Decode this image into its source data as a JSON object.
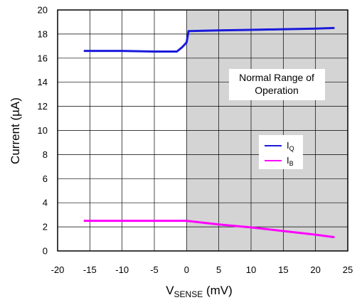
{
  "chart_data": {
    "type": "line",
    "title": "",
    "xlabel_main": "V",
    "xlabel_sub": "SENSE",
    "xlabel_unit": " (mV)",
    "ylabel": "Current (µA)",
    "xlim": [
      -20,
      25
    ],
    "ylim": [
      0,
      20
    ],
    "x_ticks": [
      -20,
      -15,
      -10,
      -5,
      0,
      5,
      10,
      15,
      20,
      25
    ],
    "y_ticks": [
      0,
      2,
      4,
      6,
      8,
      10,
      12,
      14,
      16,
      18,
      20
    ],
    "grid": true,
    "shaded_region": {
      "x_from": 0,
      "x_to": 25,
      "color": "#d4d4d4"
    },
    "annotation": {
      "line1": "Normal Range of",
      "line2": "Operation",
      "x": 12.5,
      "y": 13.5
    },
    "legend_placement": "right-middle",
    "series": [
      {
        "name": "I",
        "name_sub": "Q",
        "color": "#1a1adc",
        "x": [
          -15.8,
          -10,
          -5,
          -1.5,
          -0.7,
          0,
          0.3,
          5,
          10,
          15,
          20,
          22.8
        ],
        "y": [
          16.6,
          16.6,
          16.55,
          16.55,
          16.9,
          17.3,
          18.25,
          18.3,
          18.35,
          18.4,
          18.45,
          18.5
        ]
      },
      {
        "name": "I",
        "name_sub": "B",
        "color": "#ff00ff",
        "x": [
          -15.8,
          -10,
          -5,
          0,
          5,
          10,
          15,
          20,
          22.8
        ],
        "y": [
          2.5,
          2.5,
          2.5,
          2.5,
          2.2,
          1.95,
          1.65,
          1.35,
          1.15
        ]
      }
    ]
  }
}
